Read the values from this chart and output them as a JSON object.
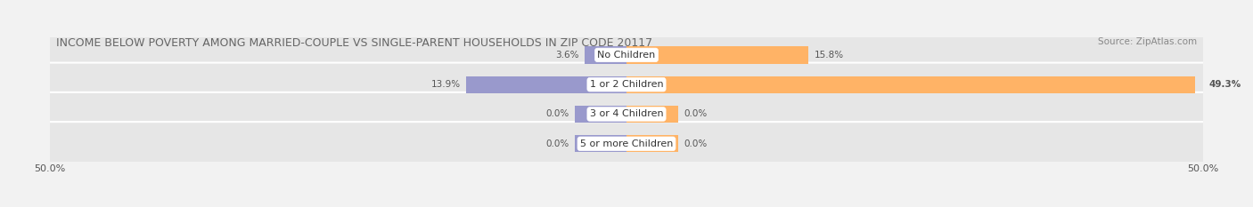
{
  "title": "INCOME BELOW POVERTY AMONG MARRIED-COUPLE VS SINGLE-PARENT HOUSEHOLDS IN ZIP CODE 20117",
  "source": "Source: ZipAtlas.com",
  "categories": [
    "No Children",
    "1 or 2 Children",
    "3 or 4 Children",
    "5 or more Children"
  ],
  "married_values": [
    3.6,
    13.9,
    0.0,
    0.0
  ],
  "single_values": [
    15.8,
    49.3,
    0.0,
    0.0
  ],
  "married_color": "#9999cc",
  "single_color": "#ffb366",
  "xlim": [
    -50,
    50
  ],
  "title_fontsize": 9,
  "source_fontsize": 7.5,
  "bar_height": 0.58,
  "background_color": "#f2f2f2",
  "row_bg_color": "#e6e6e6",
  "label_fontsize": 7.5,
  "category_fontsize": 8,
  "zero_bar_width": 4.5
}
